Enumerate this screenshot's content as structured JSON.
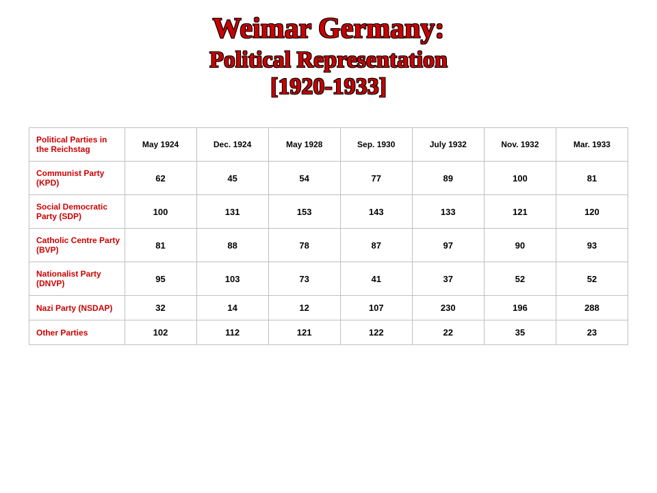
{
  "title": {
    "line1": "Weimar Germany:",
    "line2": "Political Representation",
    "line3": "[1920-1933]",
    "color": "#cc0000",
    "shadow_color": "#000000",
    "font_family": "Georgia",
    "line1_fontsize": 42,
    "line2_fontsize": 34
  },
  "table": {
    "type": "table",
    "border_color": "#bfbfbf",
    "rowhead_color": "#cc0000",
    "cell_font_family": "Verdana",
    "cell_fontsize": 12,
    "value_fontsize": 13,
    "header_label": "Political Parties in the Reichstag",
    "columns": [
      "May 1924",
      "Dec. 1924",
      "May 1928",
      "Sep. 1930",
      "July 1932",
      "Nov. 1932",
      "Mar. 1933"
    ],
    "rows": [
      {
        "label": "Communist Party (KPD)",
        "values": [
          62,
          45,
          54,
          77,
          89,
          100,
          81
        ]
      },
      {
        "label": "Social Democratic Party (SDP)",
        "values": [
          100,
          131,
          153,
          143,
          133,
          121,
          120
        ]
      },
      {
        "label": "Catholic Centre Party (BVP)",
        "values": [
          81,
          88,
          78,
          87,
          97,
          90,
          93
        ]
      },
      {
        "label": "Nationalist Party (DNVP)",
        "values": [
          95,
          103,
          73,
          41,
          37,
          52,
          52
        ]
      },
      {
        "label": "Nazi Party (NSDAP)",
        "values": [
          32,
          14,
          12,
          107,
          230,
          196,
          288
        ]
      },
      {
        "label": "Other Parties",
        "values": [
          102,
          112,
          121,
          122,
          22,
          35,
          23
        ]
      }
    ]
  },
  "background_color": "#ffffff"
}
